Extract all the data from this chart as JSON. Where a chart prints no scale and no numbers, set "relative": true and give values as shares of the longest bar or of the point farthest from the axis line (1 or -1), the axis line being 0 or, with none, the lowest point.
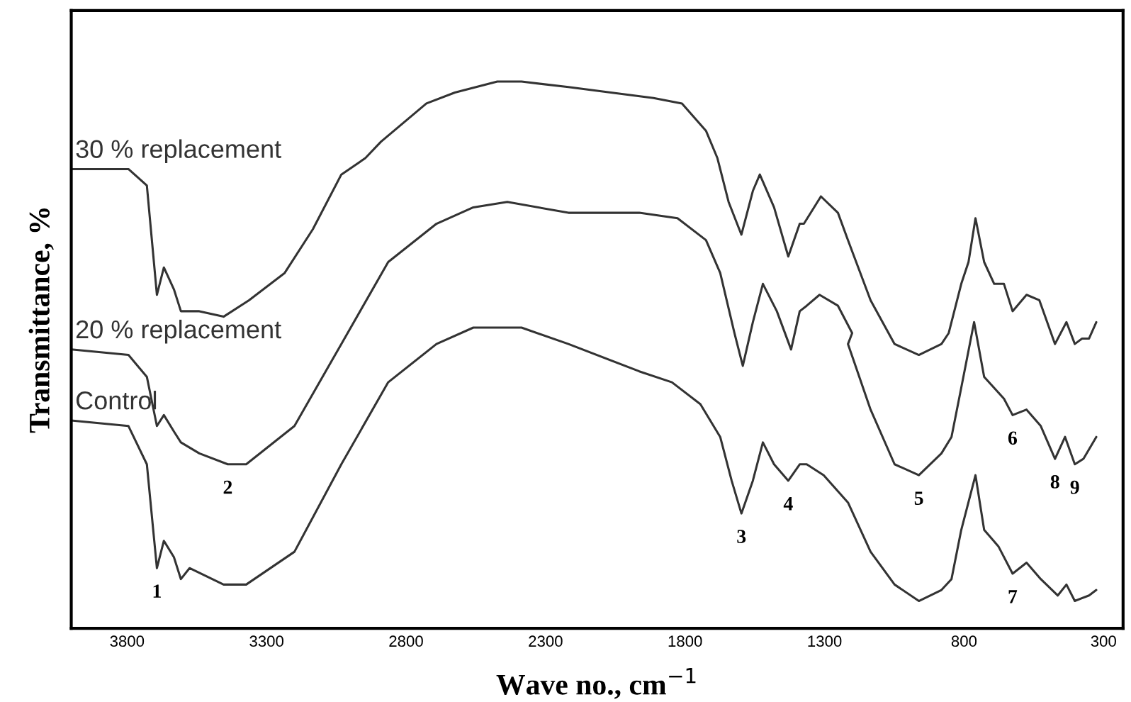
{
  "chart_data": {
    "type": "line",
    "relative": true,
    "xlabel": "Wave no., cm$^{−1}$",
    "ylabel": "Transmittance, %",
    "xlim": [
      4000,
      230
    ],
    "xticks": [
      3800,
      3300,
      2800,
      2300,
      1800,
      1300,
      800,
      300
    ],
    "tick_labels": "x",
    "grid": false,
    "legend": false,
    "marker": "none",
    "line_style": "solid",
    "series": [
      {
        "name": "30 % replacement",
        "color": "#333333",
        "x": [
          4000,
          3795,
          3729,
          3693,
          3668,
          3632,
          3607,
          3541,
          3454,
          3363,
          3235,
          3134,
          3032,
          2946,
          2890,
          2727,
          2625,
          2473,
          2386,
          2218,
          2066,
          1913,
          1811,
          1725,
          1684,
          1644,
          1598,
          1557,
          1532,
          1481,
          1430,
          1389,
          1374,
          1313,
          1252,
          1216,
          1135,
          1049,
          962,
          881,
          855,
          810,
          784,
          759,
          728,
          692,
          657,
          626,
          576,
          530,
          474,
          433,
          403,
          377,
          352,
          326
        ],
        "values": [
          0.84,
          0.84,
          0.81,
          0.61,
          0.66,
          0.62,
          0.58,
          0.58,
          0.57,
          0.6,
          0.65,
          0.73,
          0.83,
          0.86,
          0.89,
          0.96,
          0.98,
          1.0,
          1.0,
          0.99,
          0.98,
          0.97,
          0.96,
          0.91,
          0.86,
          0.78,
          0.72,
          0.8,
          0.83,
          0.77,
          0.68,
          0.74,
          0.74,
          0.79,
          0.76,
          0.71,
          0.6,
          0.52,
          0.5,
          0.52,
          0.54,
          0.63,
          0.67,
          0.75,
          0.67,
          0.63,
          0.63,
          0.58,
          0.61,
          0.6,
          0.52,
          0.56,
          0.52,
          0.53,
          0.53,
          0.56
        ]
      },
      {
        "name": "20 % replacement",
        "color": "#333333",
        "x": [
          4000,
          3795,
          3729,
          3693,
          3668,
          3632,
          3607,
          3541,
          3439,
          3373,
          3200,
          3032,
          2864,
          2691,
          2559,
          2437,
          2218,
          1964,
          1827,
          1725,
          1674,
          1623,
          1593,
          1557,
          1521,
          1471,
          1420,
          1389,
          1364,
          1318,
          1252,
          1201,
          1216,
          1135,
          1049,
          962,
          881,
          845,
          810,
          764,
          728,
          657,
          626,
          576,
          525,
          474,
          438,
          403,
          372,
          326
        ],
        "values": [
          0.51,
          0.5,
          0.46,
          0.37,
          0.39,
          0.36,
          0.34,
          0.32,
          0.3,
          0.3,
          0.37,
          0.52,
          0.67,
          0.74,
          0.77,
          0.78,
          0.76,
          0.76,
          0.75,
          0.71,
          0.65,
          0.54,
          0.48,
          0.56,
          0.63,
          0.58,
          0.51,
          0.58,
          0.59,
          0.61,
          0.59,
          0.54,
          0.52,
          0.4,
          0.3,
          0.28,
          0.32,
          0.35,
          0.44,
          0.56,
          0.46,
          0.42,
          0.39,
          0.4,
          0.37,
          0.31,
          0.35,
          0.3,
          0.31,
          0.35
        ]
      },
      {
        "name": "Control",
        "color": "#333333",
        "x": [
          4000,
          3795,
          3729,
          3693,
          3668,
          3632,
          3607,
          3576,
          3454,
          3373,
          3200,
          3032,
          2864,
          2691,
          2559,
          2473,
          2386,
          2218,
          1964,
          1847,
          1745,
          1674,
          1633,
          1598,
          1557,
          1521,
          1481,
          1430,
          1389,
          1364,
          1303,
          1216,
          1135,
          1049,
          962,
          881,
          845,
          810,
          759,
          728,
          677,
          626,
          576,
          525,
          464,
          433,
          403,
          352,
          326
        ],
        "values": [
          0.38,
          0.37,
          0.3,
          0.11,
          0.16,
          0.13,
          0.09,
          0.11,
          0.08,
          0.08,
          0.14,
          0.3,
          0.45,
          0.52,
          0.55,
          0.55,
          0.55,
          0.52,
          0.47,
          0.45,
          0.41,
          0.35,
          0.27,
          0.21,
          0.27,
          0.34,
          0.3,
          0.27,
          0.3,
          0.3,
          0.28,
          0.23,
          0.14,
          0.08,
          0.05,
          0.07,
          0.09,
          0.18,
          0.28,
          0.18,
          0.15,
          0.1,
          0.12,
          0.09,
          0.06,
          0.08,
          0.05,
          0.06,
          0.07
        ]
      }
    ],
    "annotations": [
      {
        "text": "1",
        "x": 3693,
        "y": 0.11
      },
      {
        "text": "2",
        "x": 3439,
        "y": 0.3
      },
      {
        "text": "3",
        "x": 1598,
        "y": 0.21
      },
      {
        "text": "4",
        "x": 1430,
        "y": 0.27
      },
      {
        "text": "5",
        "x": 962,
        "y": 0.28
      },
      {
        "text": "6",
        "x": 626,
        "y": 0.39
      },
      {
        "text": "7",
        "x": 626,
        "y": 0.1
      },
      {
        "text": "8",
        "x": 474,
        "y": 0.31
      },
      {
        "text": "9",
        "x": 403,
        "y": 0.3
      }
    ]
  }
}
